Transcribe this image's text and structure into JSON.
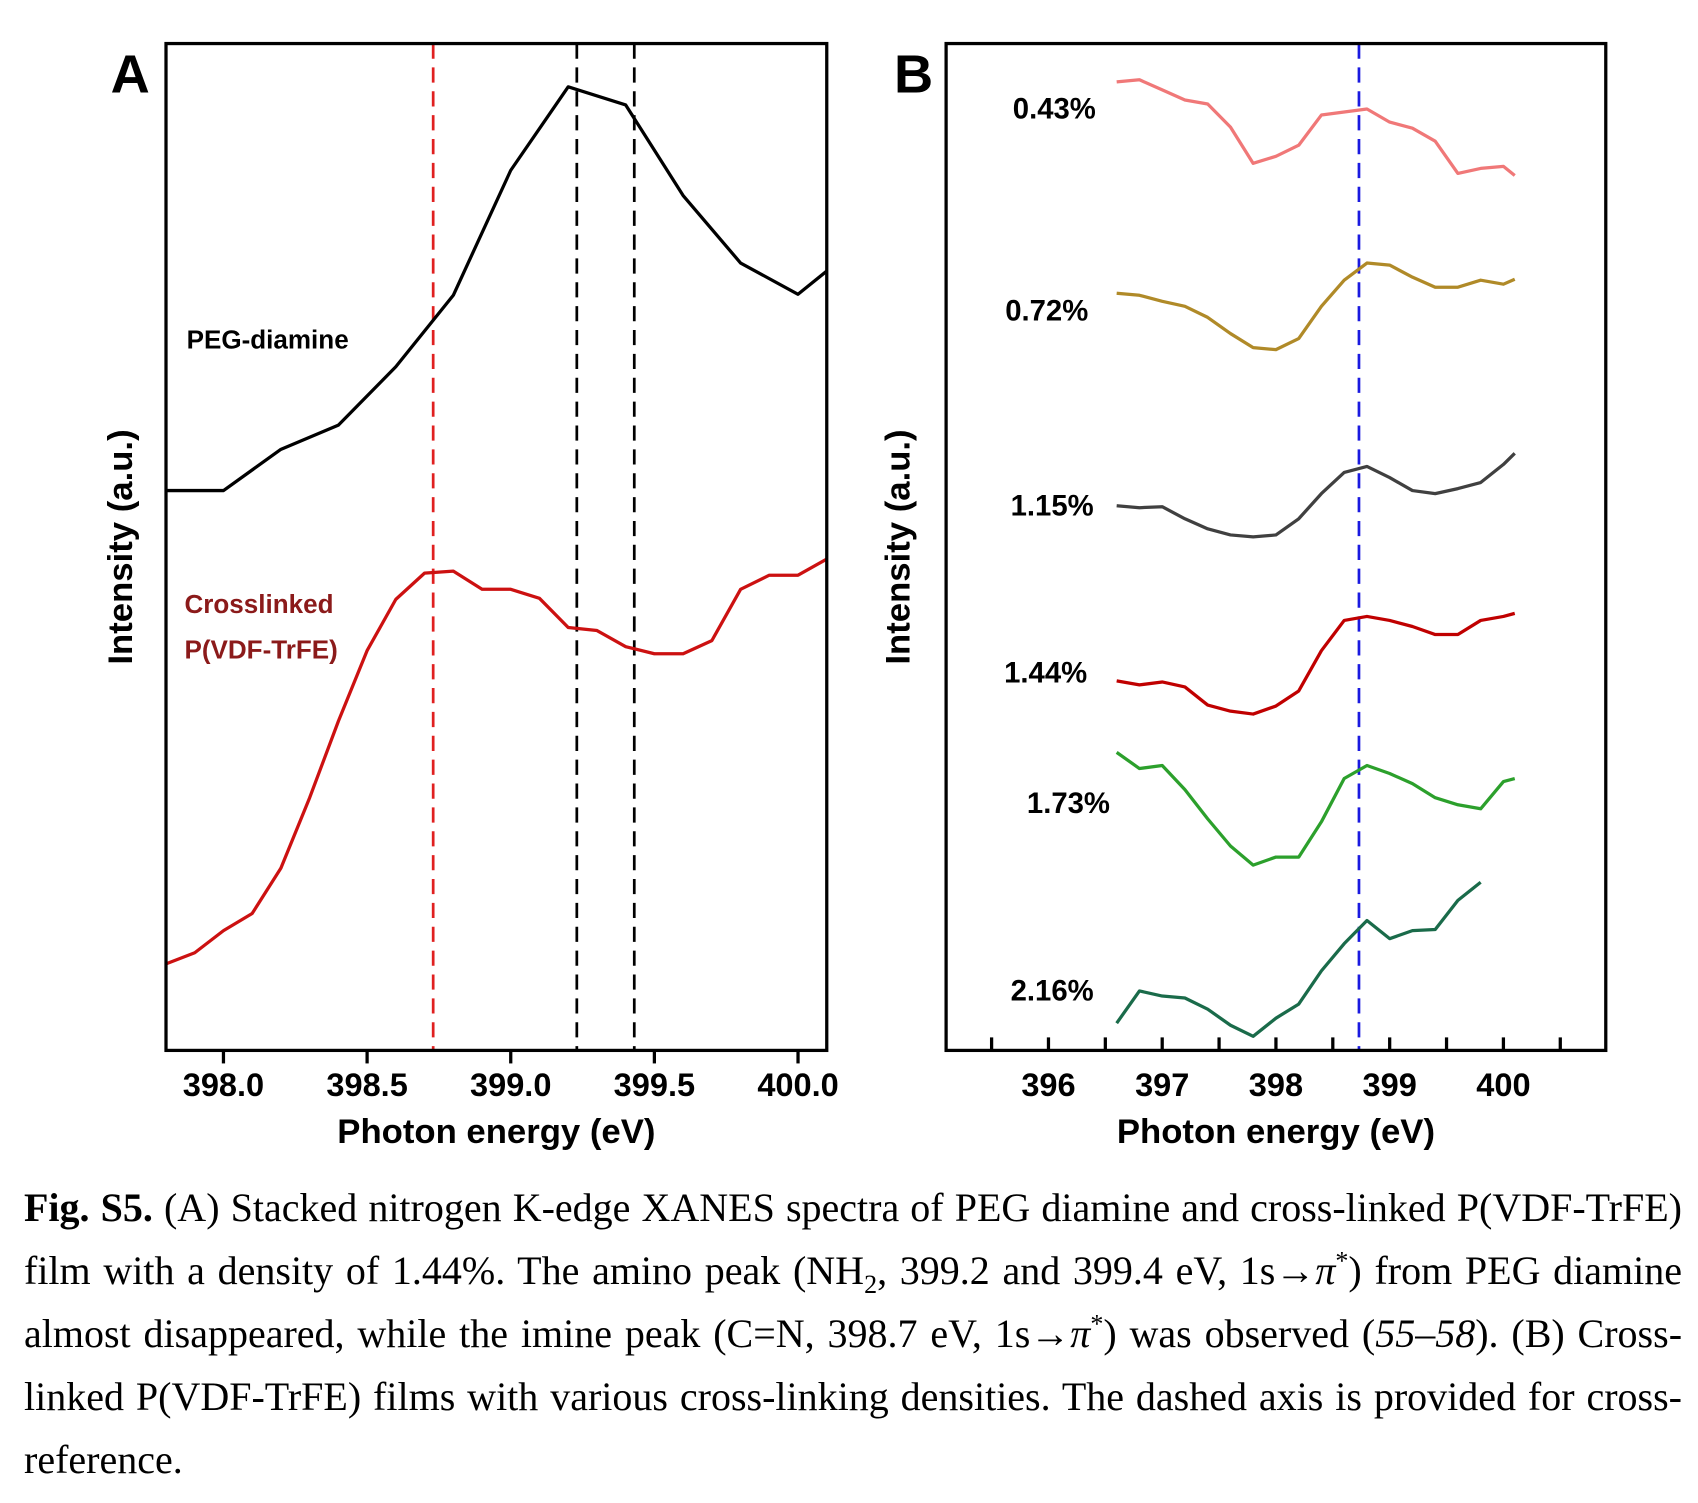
{
  "chart_data": [
    {
      "type": "line",
      "panel_label": "A",
      "xlabel": "Photon energy (eV)",
      "ylabel": "Intensity (a.u.)",
      "xlim": [
        397.8,
        400.1
      ],
      "ylim": [
        0,
        100
      ],
      "xticks": [
        {
          "value": 398,
          "label": "398.0"
        },
        398.5,
        {
          "value": 399,
          "label": "399.0"
        },
        399.5,
        {
          "value": 400,
          "label": "400.0"
        }
      ],
      "reference_lines": [
        {
          "value": 398.73,
          "color": "#e02020"
        },
        {
          "value": 399.23,
          "color": "#000000"
        },
        {
          "value": 399.43,
          "color": "#000000"
        }
      ],
      "series": [
        {
          "name": "PEG-diamine",
          "color": "#000000",
          "x": [
            397.8,
            398.0,
            398.2,
            398.4,
            398.6,
            398.8,
            399.0,
            399.2,
            399.4,
            399.6,
            399.8,
            400.0,
            400.1
          ],
          "values": [
            55.6,
            55.6,
            59.7,
            62.1,
            67.9,
            75.0,
            87.4,
            95.7,
            93.9,
            84.9,
            78.2,
            75.1,
            77.4
          ]
        },
        {
          "name": "Crosslinked P(VDF-TrFE)",
          "color": "#cc1111",
          "label_color": "#8b1a1a",
          "x": [
            397.8,
            397.9,
            398.0,
            398.1,
            398.2,
            398.3,
            398.4,
            398.5,
            398.6,
            398.7,
            398.8,
            398.9,
            399.0,
            399.1,
            399.2,
            399.3,
            399.4,
            399.5,
            399.6,
            399.7,
            399.8,
            399.9,
            400.0,
            400.1
          ],
          "values": [
            8.6,
            9.7,
            11.9,
            13.6,
            18.1,
            25.1,
            32.7,
            39.7,
            44.8,
            47.4,
            47.6,
            45.8,
            45.8,
            44.9,
            42.0,
            41.7,
            40.1,
            39.4,
            39.4,
            40.7,
            45.8,
            47.2,
            47.2,
            48.8
          ]
        }
      ]
    },
    {
      "type": "line",
      "panel_label": "B",
      "xlabel": "Photon energy (eV)",
      "ylabel": "Intensity (a.u.)",
      "xlim": [
        395.1,
        400.9
      ],
      "ylim": [
        0,
        100
      ],
      "xticks": [
        396,
        397,
        398,
        399,
        400
      ],
      "xminorticks": [
        395.5,
        396.5,
        397.5,
        398.5,
        399.5,
        400.5
      ],
      "reference_lines": [
        {
          "value": 398.73,
          "color": "#1a1ae0"
        }
      ],
      "x": [
        396.6,
        396.8,
        397.0,
        397.2,
        397.4,
        397.6,
        397.8,
        398.0,
        398.2,
        398.4,
        398.6,
        398.8,
        399.0,
        399.2,
        399.4,
        399.6,
        399.8,
        400.0,
        400.1
      ],
      "series": [
        {
          "name": "0.43%",
          "color": "#f07878",
          "values": [
            96.2,
            96.4,
            95.4,
            94.4,
            94.0,
            91.7,
            88.1,
            88.8,
            89.9,
            92.9,
            93.2,
            93.5,
            92.2,
            91.6,
            90.3,
            87.1,
            87.6,
            87.8,
            86.9
          ]
        },
        {
          "name": "0.72%",
          "color": "#b08a28",
          "values": [
            75.2,
            75.0,
            74.4,
            73.9,
            72.8,
            71.2,
            69.8,
            69.6,
            70.7,
            73.9,
            76.5,
            78.2,
            78.0,
            76.8,
            75.8,
            75.8,
            76.5,
            76.1,
            76.6
          ]
        },
        {
          "name": "1.15%",
          "color": "#404040",
          "values": [
            54.1,
            53.9,
            54.0,
            52.8,
            51.8,
            51.2,
            51.0,
            51.2,
            52.8,
            55.3,
            57.4,
            58.0,
            56.9,
            55.6,
            55.3,
            55.8,
            56.4,
            58.2,
            59.3
          ]
        },
        {
          "name": "1.44%",
          "color": "#c00000",
          "values": [
            36.7,
            36.3,
            36.6,
            36.1,
            34.3,
            33.7,
            33.4,
            34.2,
            35.7,
            39.7,
            42.7,
            43.1,
            42.7,
            42.1,
            41.3,
            41.3,
            42.7,
            43.1,
            43.4
          ]
        },
        {
          "name": "1.73%",
          "color": "#2ca02c",
          "values": [
            29.6,
            28.0,
            28.3,
            25.9,
            23.0,
            20.3,
            18.4,
            19.2,
            19.2,
            22.7,
            27.0,
            28.3,
            27.5,
            26.5,
            25.1,
            24.4,
            24.0,
            26.7,
            27.0
          ]
        },
        {
          "name": "2.16%",
          "color": "#1a6b4a",
          "values": [
            2.7,
            5.9,
            5.4,
            5.2,
            4.1,
            2.5,
            1.4,
            3.2,
            4.6,
            7.9,
            10.6,
            12.9,
            11.1,
            11.9,
            12.0,
            14.9,
            16.7,
            null,
            null
          ]
        }
      ]
    }
  ],
  "caption": {
    "segments": [
      {
        "text": "Fig. S5.",
        "style": "bold"
      },
      {
        "text": " (A) Stacked nitrogen K-edge XANES spectra of PEG diamine and cross-linked P(VDF-TrFE) film with a density of 1.44%. The amino peak (NH",
        "style": "normal"
      },
      {
        "text": "2",
        "style": "sub"
      },
      {
        "text": ", 399.2 and 399.4 eV, 1s→",
        "style": "normal"
      },
      {
        "text": "π",
        "style": "italic"
      },
      {
        "text": "*",
        "style": "sup"
      },
      {
        "text": ") from PEG diamine almost disappeared, while the imine peak (C=N, 398.7 eV, 1s→",
        "style": "normal"
      },
      {
        "text": "π",
        "style": "italic"
      },
      {
        "text": "*",
        "style": "sup"
      },
      {
        "text": ") was observed (",
        "style": "normal"
      },
      {
        "text": "55–58",
        "style": "italic"
      },
      {
        "text": "). (B) Cross-linked P(VDF-TrFE) films with various cross-linking densities. The dashed axis is provided for cross-reference.",
        "style": "normal"
      }
    ]
  }
}
